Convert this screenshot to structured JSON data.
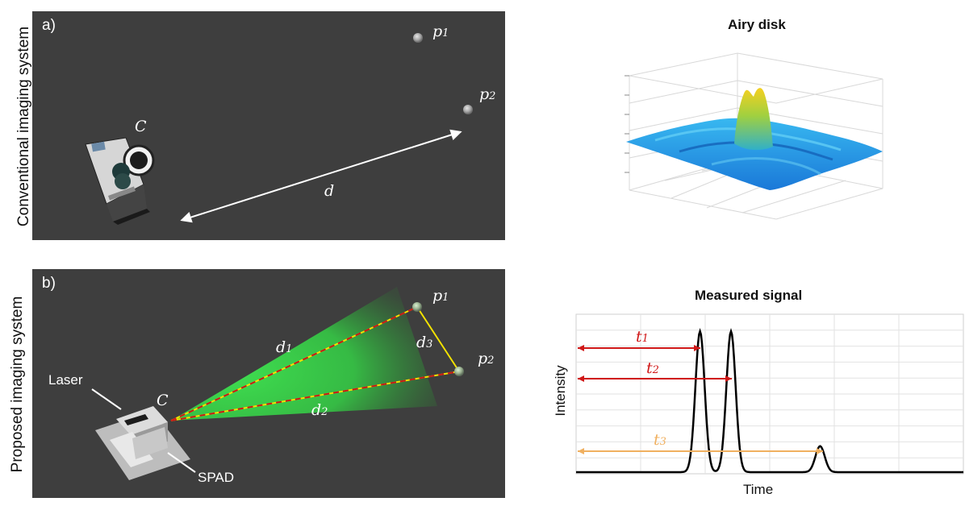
{
  "panel_a": {
    "letter": "a)",
    "side_label": "Conventional imaging system",
    "camera_label": "C",
    "distance_label": "d",
    "points": [
      {
        "name": "p",
        "sub": "1"
      },
      {
        "name": "p",
        "sub": "2"
      }
    ]
  },
  "panel_b": {
    "letter": "b)",
    "side_label": "Proposed imaging system",
    "sensor_label": "C",
    "laser_label": "Laser",
    "spad_label": "SPAD",
    "points": [
      {
        "name": "p",
        "sub": "1"
      },
      {
        "name": "p",
        "sub": "2"
      }
    ],
    "distances": [
      {
        "name": "d",
        "sub": "1"
      },
      {
        "name": "d",
        "sub": "2"
      },
      {
        "name": "d",
        "sub": "3"
      }
    ]
  },
  "airy": {
    "title": "Airy disk"
  },
  "signal": {
    "title": "Measured signal",
    "xlabel": "Time",
    "ylabel": "Intensity",
    "times": [
      {
        "name": "t",
        "sub": "1",
        "color": "#d01818"
      },
      {
        "name": "t",
        "sub": "2",
        "color": "#d01818"
      },
      {
        "name": "t",
        "sub": "3",
        "color": "#f0b060"
      }
    ]
  },
  "chart_data": {
    "type": "line",
    "title": "Measured signal",
    "xlabel": "Time",
    "ylabel": "Intensity",
    "series": [
      {
        "name": "signal",
        "peaks": [
          {
            "time": 0.32,
            "intensity": 0.92
          },
          {
            "time": 0.4,
            "intensity": 0.92
          },
          {
            "time": 0.63,
            "intensity": 0.17
          }
        ]
      }
    ],
    "xlim": [
      0,
      1
    ],
    "ylim": [
      0,
      1
    ],
    "grid": true
  },
  "colors": {
    "panel_bg": "#3e3e3e",
    "beam": "#3fe050",
    "path_yellow": "#f2e200",
    "path_red": "#c81818",
    "t_red": "#d01818",
    "t_orange": "#f0b060"
  }
}
